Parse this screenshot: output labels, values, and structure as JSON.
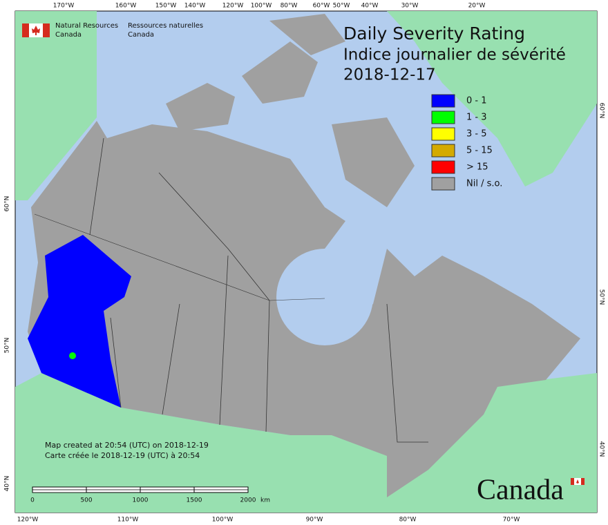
{
  "header": {
    "agency_en": [
      "Natural Resources",
      "Canada"
    ],
    "agency_fr": [
      "Ressources naturelles",
      "Canada"
    ]
  },
  "title": [
    "Daily Severity Rating",
    "Indice journalier de sévérité",
    "2018-12-17"
  ],
  "legend": [
    {
      "label": "0 - 1",
      "color": "#0000ff"
    },
    {
      "label": "1 - 3",
      "color": "#00ff00"
    },
    {
      "label": "3 - 5",
      "color": "#ffff00"
    },
    {
      "label": "5 - 15",
      "color": "#d4aa00"
    },
    {
      "label": "> 15",
      "color": "#ff0000"
    },
    {
      "label": "Nil / s.o.",
      "color": "#a0a0a0"
    }
  ],
  "notes": [
    "Map created at 20:54 (UTC) on 2018-12-19",
    "Carte créée le 2018-12-19 (UTC) à 20:54"
  ],
  "scale_bar": {
    "ticks": [
      0,
      500,
      1000,
      1500,
      2000
    ],
    "unit": "km"
  },
  "graticule": {
    "top": [
      "170°W",
      "160°W",
      "150°W",
      "140°W",
      "120°W",
      "100°W",
      "80°W",
      "60°W",
      "50°W",
      "40°W",
      "30°W",
      "20°W"
    ],
    "bottom": [
      "120°W",
      "110°W",
      "100°W",
      "90°W",
      "80°W",
      "70°W"
    ],
    "left": [
      "60°N",
      "50°N",
      "40°N"
    ],
    "right": [
      "60°N",
      "50°N",
      "40°N"
    ]
  },
  "wordmark": "Canada"
}
